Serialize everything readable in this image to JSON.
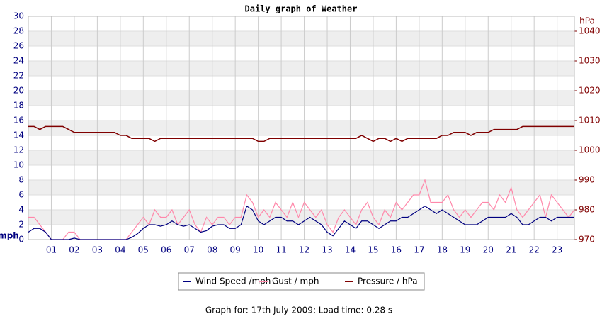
{
  "chart_data": {
    "type": "line",
    "title": "Daily graph of Weather",
    "y_label": "mph",
    "y2_label": "hPa",
    "footer": "Graph for: 17th July 2009; Load time: 0.28 s",
    "grid": true,
    "xlim": [
      0,
      23.75
    ],
    "xticks": [
      {
        "value": 1,
        "label": "01"
      },
      {
        "value": 2,
        "label": "02"
      },
      {
        "value": 3,
        "label": "03"
      },
      {
        "value": 4,
        "label": "04"
      },
      {
        "value": 5,
        "label": "05"
      },
      {
        "value": 6,
        "label": "06"
      },
      {
        "value": 7,
        "label": "07"
      },
      {
        "value": 8,
        "label": "08"
      },
      {
        "value": 9,
        "label": "09"
      },
      {
        "value": 10,
        "label": "10"
      },
      {
        "value": 11,
        "label": "11"
      },
      {
        "value": 12,
        "label": "12"
      },
      {
        "value": 13,
        "label": "13"
      },
      {
        "value": 14,
        "label": "14"
      },
      {
        "value": 15,
        "label": "15"
      },
      {
        "value": 16,
        "label": "16"
      },
      {
        "value": 17,
        "label": "17"
      },
      {
        "value": 18,
        "label": "18"
      },
      {
        "value": 19,
        "label": "19"
      },
      {
        "value": 20,
        "label": "20"
      },
      {
        "value": 21,
        "label": "21"
      },
      {
        "value": 22,
        "label": "22"
      },
      {
        "value": 23,
        "label": "23"
      }
    ],
    "ylim": [
      0,
      30
    ],
    "yticks": [
      0,
      2,
      4,
      6,
      8,
      10,
      12,
      14,
      16,
      18,
      20,
      22,
      24,
      26,
      28,
      30
    ],
    "y2lim": [
      970,
      1045
    ],
    "y2ticks": [
      970,
      980,
      990,
      1000,
      1010,
      1020,
      1030,
      1040
    ],
    "x": [
      0,
      0.25,
      0.5,
      0.75,
      1,
      1.25,
      1.5,
      1.75,
      2,
      2.25,
      2.5,
      2.75,
      3,
      3.25,
      3.5,
      3.75,
      4,
      4.25,
      4.5,
      4.75,
      5,
      5.25,
      5.5,
      5.75,
      6,
      6.25,
      6.5,
      6.75,
      7,
      7.25,
      7.5,
      7.75,
      8,
      8.25,
      8.5,
      8.75,
      9,
      9.25,
      9.5,
      9.75,
      10,
      10.25,
      10.5,
      10.75,
      11,
      11.25,
      11.5,
      11.75,
      12,
      12.25,
      12.5,
      12.75,
      13,
      13.25,
      13.5,
      13.75,
      14,
      14.25,
      14.5,
      14.75,
      15,
      15.25,
      15.5,
      15.75,
      16,
      16.25,
      16.5,
      16.75,
      17,
      17.25,
      17.5,
      17.75,
      18,
      18.25,
      18.5,
      18.75,
      19,
      19.25,
      19.5,
      19.75,
      20,
      20.25,
      20.5,
      20.75,
      21,
      21.25,
      21.5,
      21.75,
      22,
      22.25,
      22.5,
      22.75,
      23,
      23.25,
      23.5,
      23.75
    ],
    "series": [
      {
        "name": "Gust / mph",
        "color": "#ff88aa",
        "values": [
          3,
          3,
          2,
          1,
          0,
          0,
          0,
          1,
          1,
          0,
          0,
          0,
          0,
          0,
          0,
          0,
          0,
          0,
          1,
          2,
          3,
          2,
          4,
          3,
          3,
          4,
          2,
          3,
          4,
          2,
          1,
          3,
          2,
          3,
          3,
          2,
          3,
          3,
          6,
          5,
          3,
          4,
          3,
          5,
          4,
          3,
          5,
          3,
          5,
          4,
          3,
          4,
          2,
          1,
          3,
          4,
          3,
          2,
          4,
          5,
          3,
          2,
          4,
          3,
          5,
          4,
          5,
          6,
          6,
          8,
          5,
          5,
          5,
          6,
          4,
          3,
          4,
          3,
          4,
          5,
          5,
          4,
          6,
          5,
          7,
          4,
          3,
          4,
          5,
          6,
          3,
          6,
          5,
          4,
          3,
          4
        ]
      },
      {
        "name": "Wind Speed /mph",
        "color": "#000080",
        "values": [
          1,
          1.5,
          1.5,
          1,
          0,
          0,
          0,
          0,
          0.2,
          0,
          0,
          0,
          0,
          0,
          0,
          0,
          0,
          0,
          0.3,
          0.8,
          1.5,
          2,
          2,
          1.8,
          2,
          2.5,
          2,
          1.8,
          2,
          1.5,
          1,
          1.2,
          1.8,
          2,
          2,
          1.5,
          1.5,
          2,
          4.5,
          4,
          2.5,
          2,
          2.5,
          3,
          3,
          2.5,
          2.5,
          2,
          2.5,
          3,
          2.5,
          2,
          1,
          0.5,
          1.5,
          2.5,
          2,
          1.5,
          2.5,
          2.5,
          2,
          1.5,
          2,
          2.5,
          2.5,
          3,
          3,
          3.5,
          4,
          4.5,
          4,
          3.5,
          4,
          3.5,
          3,
          2.5,
          2,
          2,
          2,
          2.5,
          3,
          3,
          3,
          3,
          3.5,
          3,
          2,
          2,
          2.5,
          3,
          3,
          2.5,
          3,
          3,
          3,
          3
        ]
      },
      {
        "name": "Pressure / hPa",
        "color": "#800000",
        "axis": "y2",
        "values": [
          1008,
          1008,
          1007,
          1008,
          1008,
          1008,
          1008,
          1007,
          1006,
          1006,
          1006,
          1006,
          1006,
          1006,
          1006,
          1006,
          1005,
          1005,
          1004,
          1004,
          1004,
          1004,
          1003,
          1004,
          1004,
          1004,
          1004,
          1004,
          1004,
          1004,
          1004,
          1004,
          1004,
          1004,
          1004,
          1004,
          1004,
          1004,
          1004,
          1004,
          1003,
          1003,
          1004,
          1004,
          1004,
          1004,
          1004,
          1004,
          1004,
          1004,
          1004,
          1004,
          1004,
          1004,
          1004,
          1004,
          1004,
          1004,
          1005,
          1004,
          1003,
          1004,
          1004,
          1003,
          1004,
          1003,
          1004,
          1004,
          1004,
          1004,
          1004,
          1004,
          1005,
          1005,
          1006,
          1006,
          1006,
          1005,
          1006,
          1006,
          1006,
          1007,
          1007,
          1007,
          1007,
          1007,
          1008,
          1008,
          1008,
          1008,
          1008,
          1008,
          1008,
          1008,
          1008,
          1008
        ]
      }
    ]
  }
}
